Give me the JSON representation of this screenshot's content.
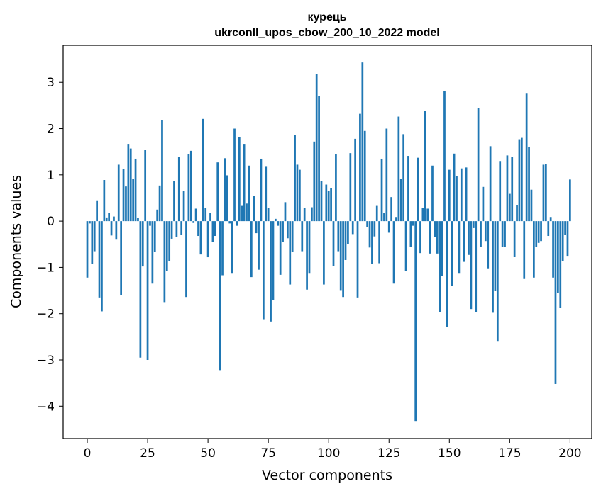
{
  "chart_data": {
    "type": "bar",
    "title": "курець",
    "subtitle": "ukrconll_upos_cbow_200_10_2022 model",
    "xlabel": "Vector components",
    "ylabel": "Components values",
    "xlim": [
      -10,
      209
    ],
    "ylim": [
      -4.7,
      3.8
    ],
    "xticks": [
      0,
      25,
      50,
      75,
      100,
      125,
      150,
      175,
      200
    ],
    "yticks": [
      -4,
      -3,
      -2,
      -1,
      0,
      1,
      2,
      3
    ],
    "ytick_labels": [
      "−4",
      "−3",
      "−2",
      "−1",
      "0",
      "1",
      "2",
      "3"
    ],
    "bar_color": "#1f77b4",
    "grid": false,
    "values": [
      -1.22,
      -0.05,
      -0.93,
      -0.65,
      0.45,
      -1.65,
      -1.95,
      0.89,
      0.08,
      0.18,
      -0.31,
      0.1,
      -0.4,
      1.22,
      -1.6,
      1.12,
      0.75,
      1.67,
      1.57,
      0.92,
      1.35,
      0.07,
      -2.95,
      -0.98,
      1.54,
      -3.0,
      -0.1,
      -1.35,
      -0.66,
      0.25,
      0.77,
      2.18,
      -1.75,
      -1.08,
      -0.87,
      -0.38,
      0.87,
      -0.35,
      1.38,
      -0.3,
      0.66,
      -1.64,
      1.45,
      1.52,
      -0.04,
      0.27,
      -0.32,
      -0.72,
      2.21,
      0.28,
      -0.78,
      0.18,
      -0.45,
      -0.32,
      1.27,
      -3.22,
      -1.17,
      1.36,
      0.99,
      -0.05,
      -1.12,
      2.0,
      -0.1,
      1.81,
      0.33,
      1.67,
      0.38,
      1.2,
      -1.21,
      0.55,
      -0.26,
      -1.05,
      1.35,
      -2.12,
      1.19,
      0.28,
      -2.17,
      -1.7,
      0.05,
      -0.1,
      -1.16,
      -0.45,
      0.41,
      -0.37,
      -1.37,
      -0.66,
      1.87,
      1.22,
      1.11,
      -0.65,
      0.28,
      -1.48,
      -1.12,
      0.3,
      1.72,
      3.18,
      2.7,
      0.86,
      -1.37,
      0.79,
      0.65,
      0.71,
      -0.97,
      1.45,
      -0.65,
      -1.49,
      -1.64,
      -0.84,
      -0.49,
      1.47,
      -0.28,
      1.78,
      -1.65,
      2.32,
      3.43,
      1.95,
      -0.13,
      -0.57,
      -0.93,
      -0.33,
      0.33,
      -0.91,
      1.35,
      0.17,
      2.0,
      -0.25,
      0.52,
      -1.35,
      0.09,
      2.26,
      0.92,
      1.88,
      -1.08,
      1.41,
      -0.56,
      -0.1,
      -4.32,
      1.37,
      -0.69,
      0.29,
      2.38,
      0.27,
      -0.7,
      1.2,
      -0.35,
      -0.7,
      -1.97,
      -1.19,
      2.82,
      -2.28,
      1.11,
      -1.4,
      1.46,
      0.97,
      -1.12,
      1.14,
      -0.88,
      1.16,
      -0.73,
      -1.9,
      -0.15,
      -1.97,
      2.44,
      -0.55,
      0.74,
      -0.43,
      -1.02,
      1.62,
      -1.98,
      -1.5,
      -2.59,
      1.3,
      -0.55,
      -0.56,
      1.42,
      0.59,
      1.38,
      -0.77,
      0.35,
      1.77,
      1.8,
      -1.25,
      2.77,
      1.61,
      0.68,
      -1.22,
      -0.55,
      -0.47,
      -0.43,
      1.22,
      1.24,
      -0.32,
      0.09,
      -1.22,
      -3.52,
      -1.55,
      -1.88,
      -0.87,
      -0.3,
      -0.75,
      0.9
    ]
  }
}
